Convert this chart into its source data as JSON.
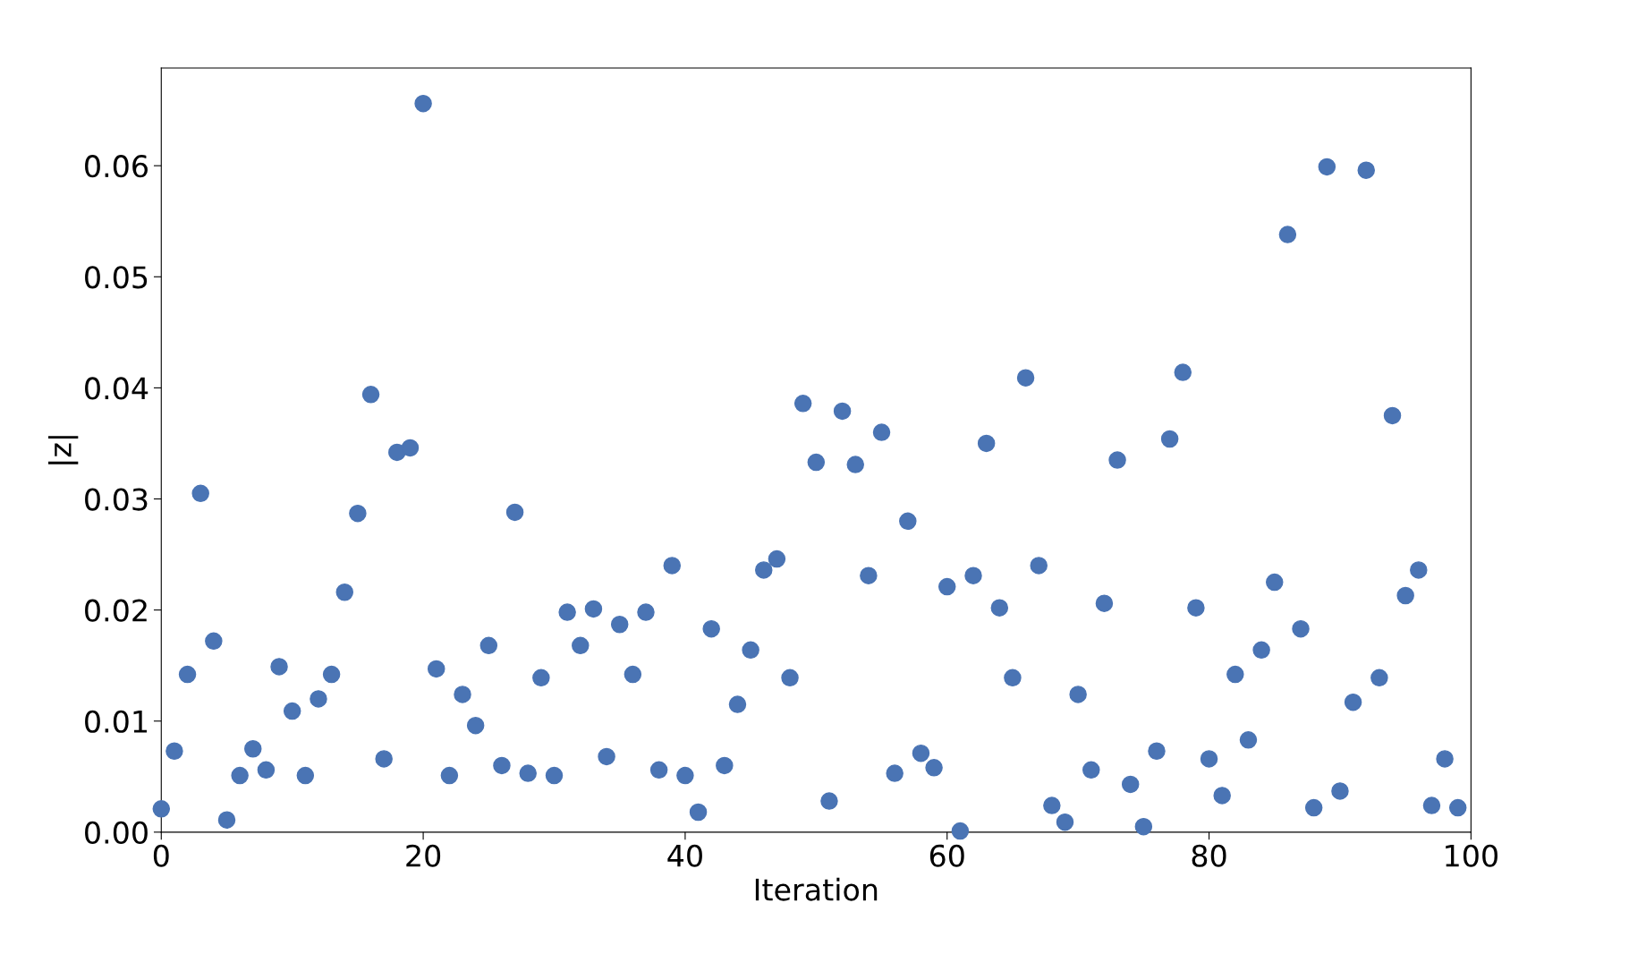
{
  "chart_data": {
    "type": "scatter",
    "xlabel": "Iteration",
    "ylabel": "|z|",
    "x": [
      0,
      1,
      2,
      3,
      4,
      5,
      6,
      7,
      8,
      9,
      10,
      11,
      12,
      13,
      14,
      15,
      16,
      17,
      18,
      19,
      20,
      21,
      22,
      23,
      24,
      25,
      26,
      27,
      28,
      29,
      30,
      31,
      32,
      33,
      34,
      35,
      36,
      37,
      38,
      39,
      40,
      41,
      42,
      43,
      44,
      45,
      46,
      47,
      48,
      49,
      50,
      51,
      52,
      53,
      54,
      55,
      56,
      57,
      58,
      59,
      60,
      61,
      62,
      63,
      64,
      65,
      66,
      67,
      68,
      69,
      70,
      71,
      72,
      73,
      74,
      75,
      76,
      77,
      78,
      79,
      80,
      81,
      82,
      83,
      84,
      85,
      86,
      87,
      88,
      89,
      90,
      91,
      92,
      93,
      94,
      95,
      96,
      97,
      98,
      99
    ],
    "series": [
      {
        "color": "#4a74b4",
        "values": [
          0.0021,
          0.0073,
          0.0142,
          0.0305,
          0.0172,
          0.0011,
          0.0051,
          0.0075,
          0.0056,
          0.0149,
          0.0109,
          0.0051,
          0.012,
          0.0142,
          0.0216,
          0.0287,
          0.0394,
          0.0066,
          0.0342,
          0.0346,
          0.0656,
          0.0147,
          0.0051,
          0.0124,
          0.0096,
          0.0168,
          0.006,
          0.0288,
          0.0053,
          0.0139,
          0.0051,
          0.0198,
          0.0168,
          0.0201,
          0.0068,
          0.0187,
          0.0142,
          0.0198,
          0.0056,
          0.024,
          0.0051,
          0.0018,
          0.0183,
          0.006,
          0.0115,
          0.0164,
          0.0236,
          0.0246,
          0.0139,
          0.0386,
          0.0333,
          0.0028,
          0.0379,
          0.0331,
          0.0231,
          0.036,
          0.0053,
          0.028,
          0.0071,
          0.0058,
          0.0221,
          0.0001,
          0.0231,
          0.035,
          0.0202,
          0.0139,
          0.0409,
          0.024,
          0.0024,
          0.0009,
          0.0124,
          0.0056,
          0.0206,
          0.0335,
          0.0043,
          0.0005,
          0.0073,
          0.0354,
          0.0414,
          0.0202,
          0.0066,
          0.0033,
          0.0142,
          0.0083,
          0.0164,
          0.0225,
          0.0538,
          0.0183,
          0.0022,
          0.0599,
          0.0037,
          0.0117,
          0.0596,
          0.0139,
          0.0375,
          0.0213,
          0.0236,
          0.0024,
          0.0066,
          0.0022
        ]
      }
    ],
    "xlim": [
      0,
      100
    ],
    "xticks": [
      0,
      20,
      40,
      60,
      80,
      100
    ],
    "ylim": [
      0,
      0.0688
    ],
    "yticks": [
      {
        "value": 0,
        "label": "0.00"
      },
      {
        "value": 0.01,
        "label": "0.01"
      },
      {
        "value": 0.02,
        "label": "0.02"
      },
      {
        "value": 0.03,
        "label": "0.03"
      },
      {
        "value": 0.04,
        "label": "0.04"
      },
      {
        "value": 0.05,
        "label": "0.05"
      },
      {
        "value": 0.06,
        "label": "0.06"
      }
    ],
    "marker": "circle",
    "grid": false,
    "legend": false
  }
}
